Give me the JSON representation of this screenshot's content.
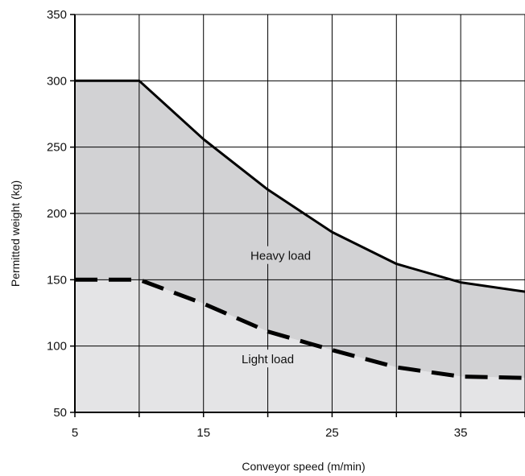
{
  "chart_data": {
    "type": "area",
    "title": "",
    "xlabel": "Conveyor speed (m/min)",
    "ylabel": "Permitted weight (kg)",
    "xlim": [
      5,
      40
    ],
    "ylim": [
      50,
      350
    ],
    "x_ticks": [
      5,
      15,
      25,
      35
    ],
    "x_ticks_labeled": [
      "5",
      "15",
      "25",
      "35"
    ],
    "x_gridlines": [
      5,
      10,
      15,
      20,
      25,
      30,
      35,
      40
    ],
    "y_ticks": [
      50,
      100,
      150,
      200,
      250,
      300,
      350
    ],
    "y_ticks_labeled": [
      "50",
      "100",
      "150",
      "200",
      "250",
      "300",
      "350"
    ],
    "grid": true,
    "series": [
      {
        "name": "Heavy load",
        "line_style": "solid",
        "fill_color": "#d2d2d4",
        "x": [
          5,
          10,
          15,
          20,
          25,
          30,
          35,
          40
        ],
        "y": [
          300,
          300,
          256,
          218,
          186,
          162,
          148,
          141
        ]
      },
      {
        "name": "Light load",
        "line_style": "dashed",
        "fill_color": "#e4e4e6",
        "x": [
          5,
          10,
          15,
          20,
          25,
          30,
          35,
          40
        ],
        "y": [
          150,
          150,
          132,
          111,
          97,
          84,
          77,
          76
        ]
      }
    ],
    "annotations": [
      {
        "text": "Heavy load",
        "x": 21,
        "y": 168
      },
      {
        "text": "Light load",
        "x": 20,
        "y": 90
      }
    ]
  }
}
